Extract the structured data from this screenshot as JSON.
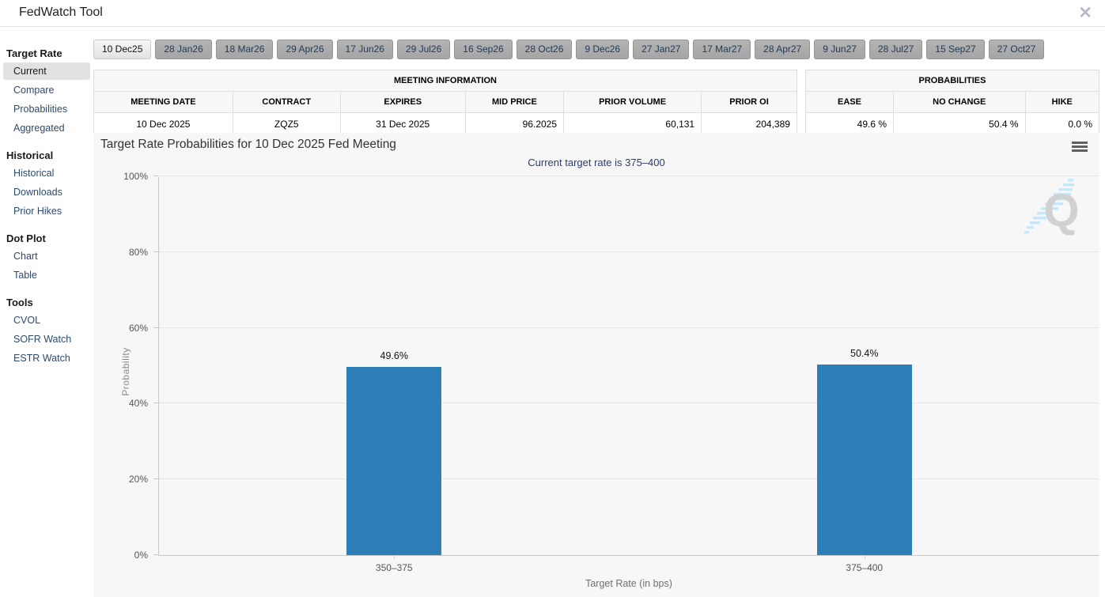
{
  "header": {
    "title": "FedWatch Tool"
  },
  "icons": {
    "close": "✕",
    "menu": "hamburger-three-bars",
    "watermark": "quikstrike-q-logo"
  },
  "sidebar": {
    "sections": [
      {
        "heading": "Target Rate",
        "items": [
          {
            "label": "Current",
            "selected": true
          },
          {
            "label": "Compare",
            "selected": false
          },
          {
            "label": "Probabilities",
            "selected": false
          },
          {
            "label": "Aggregated",
            "selected": false
          }
        ]
      },
      {
        "heading": "Historical",
        "items": [
          {
            "label": "Historical",
            "selected": false
          },
          {
            "label": "Downloads",
            "selected": false
          },
          {
            "label": "Prior Hikes",
            "selected": false
          }
        ]
      },
      {
        "heading": "Dot Plot",
        "items": [
          {
            "label": "Chart",
            "selected": false
          },
          {
            "label": "Table",
            "selected": false
          }
        ]
      },
      {
        "heading": "Tools",
        "items": [
          {
            "label": "CVOL",
            "selected": false
          },
          {
            "label": "SOFR Watch",
            "selected": false
          },
          {
            "label": "ESTR Watch",
            "selected": false
          }
        ]
      }
    ]
  },
  "tabs": [
    "10 Dec25",
    "28 Jan26",
    "18 Mar26",
    "29 Apr26",
    "17 Jun26",
    "29 Jul26",
    "16 Sep26",
    "28 Oct26",
    "9 Dec26",
    "27 Jan27",
    "17 Mar27",
    "28 Apr27",
    "9 Jun27",
    "28 Jul27",
    "15 Sep27",
    "27 Oct27"
  ],
  "selected_tab": "10 Dec25",
  "meeting_information": {
    "title": "MEETING INFORMATION",
    "columns": [
      "MEETING DATE",
      "CONTRACT",
      "EXPIRES",
      "MID PRICE",
      "PRIOR VOLUME",
      "PRIOR OI"
    ],
    "row": [
      "10 Dec 2025",
      "ZQZ5",
      "31 Dec 2025",
      "96.2025",
      "60,131",
      "204,389"
    ]
  },
  "probabilities": {
    "title": "PROBABILITIES",
    "columns": [
      "EASE",
      "NO CHANGE",
      "HIKE"
    ],
    "row": [
      "49.6 %",
      "50.4 %",
      "0.0 %"
    ]
  },
  "chart_data": {
    "type": "bar",
    "title": "Target Rate Probabilities for 10 Dec 2025 Fed Meeting",
    "subtitle": "Current target rate is 375–400",
    "categories": [
      "350–375",
      "375–400"
    ],
    "values": [
      49.6,
      50.4
    ],
    "value_labels": [
      "49.6%",
      "50.4%"
    ],
    "xlabel": "Target Rate (in bps)",
    "ylabel": "Probability",
    "ylim": [
      0,
      100
    ],
    "yticks": [
      "0%",
      "20%",
      "40%",
      "60%",
      "80%",
      "100%"
    ],
    "grid": "horizontal dotted",
    "legend": "none",
    "bar_color": "#2d7db6"
  },
  "colors": {
    "bar": "#2d7db6",
    "subtitle_text": "#2c3e70",
    "sidebar_link": "#2d4a6b",
    "panel_bg": "#f7f7f7"
  }
}
